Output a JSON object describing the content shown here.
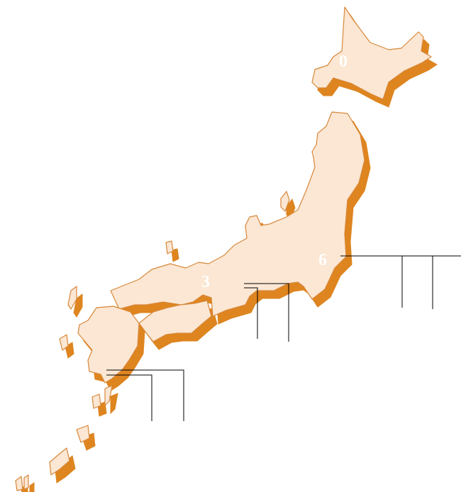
{
  "colors": {
    "land": "#fbe7d3",
    "shadow": "#de8520",
    "outline": "#d8873a",
    "leader_line": "#000000",
    "label": "#ffffff"
  },
  "labels": {
    "hokkaido": "0",
    "tokyo": "6",
    "kansai": "3"
  }
}
